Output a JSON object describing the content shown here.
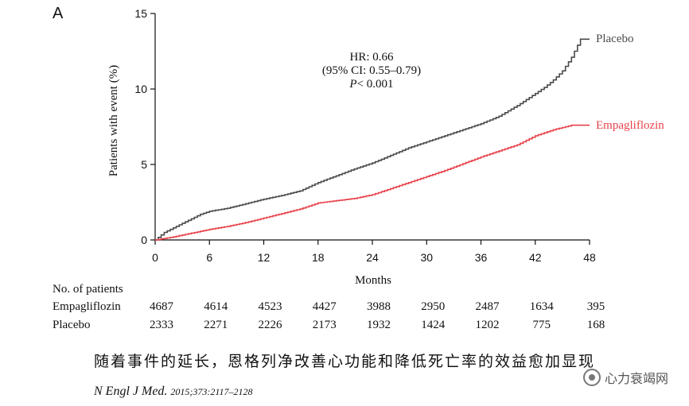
{
  "panel_label": "A",
  "chart_data": {
    "type": "line",
    "chart_style": "kaplan-meier-step",
    "xlabel": "Months",
    "ylabel": "Patients with event (%)",
    "xlim": [
      0,
      48
    ],
    "ylim": [
      0,
      15
    ],
    "xticks": [
      0,
      6,
      12,
      18,
      24,
      30,
      36,
      42,
      48
    ],
    "yticks": [
      0,
      5,
      10,
      15
    ],
    "grid": false,
    "annotation": {
      "hr": "HR: 0.66",
      "ci": "(95% CI: 0.55–0.79)",
      "p_label": "P",
      "p_value": "< 0.001"
    },
    "series": [
      {
        "name": "Placebo",
        "color": "#4a4a4a",
        "x": [
          0,
          1,
          2,
          3,
          4,
          5,
          6,
          8,
          10,
          12,
          14,
          16,
          18,
          20,
          22,
          24,
          26,
          28,
          30,
          32,
          34,
          36,
          38,
          40,
          41,
          42,
          43,
          44,
          45,
          46,
          47,
          48
        ],
        "y": [
          0,
          0.5,
          0.8,
          1.1,
          1.4,
          1.7,
          1.9,
          2.1,
          2.4,
          2.7,
          2.95,
          3.25,
          3.8,
          4.25,
          4.7,
          5.1,
          5.6,
          6.1,
          6.5,
          6.9,
          7.3,
          7.7,
          8.2,
          8.9,
          9.3,
          9.7,
          10.1,
          10.6,
          11.2,
          12.1,
          13.3,
          13.3
        ]
      },
      {
        "name": "Empagliflozin",
        "color": "#e8424a",
        "x": [
          0,
          2,
          4,
          6,
          8,
          10,
          12,
          14,
          16,
          18,
          20,
          22,
          24,
          26,
          28,
          30,
          32,
          34,
          36,
          38,
          40,
          42,
          44,
          46,
          48
        ],
        "y": [
          0,
          0.2,
          0.45,
          0.7,
          0.9,
          1.15,
          1.45,
          1.75,
          2.05,
          2.45,
          2.6,
          2.75,
          3.0,
          3.4,
          3.8,
          4.2,
          4.6,
          5.05,
          5.5,
          5.9,
          6.3,
          6.9,
          7.3,
          7.6,
          7.6
        ]
      }
    ]
  },
  "risk_table": {
    "title": "No. of patients",
    "timepoints": [
      0,
      6,
      12,
      18,
      24,
      30,
      36,
      42,
      48
    ],
    "rows": [
      {
        "name": "Empagliflozin",
        "values": [
          "4687",
          "4614",
          "4523",
          "4427",
          "3988",
          "2950",
          "2487",
          "1634",
          "395"
        ]
      },
      {
        "name": "Placebo",
        "values": [
          "2333",
          "2271",
          "2226",
          "2173",
          "1932",
          "1424",
          "1202",
          "775",
          "168"
        ]
      }
    ]
  },
  "caption": "随着事件的延长，恩格列净改善心功能和降低死亡率的效益愈加显现",
  "citation": {
    "journal": "N Engl J Med.",
    "ref": "2015;373:2117–2128"
  },
  "watermark": "心力衰竭网"
}
